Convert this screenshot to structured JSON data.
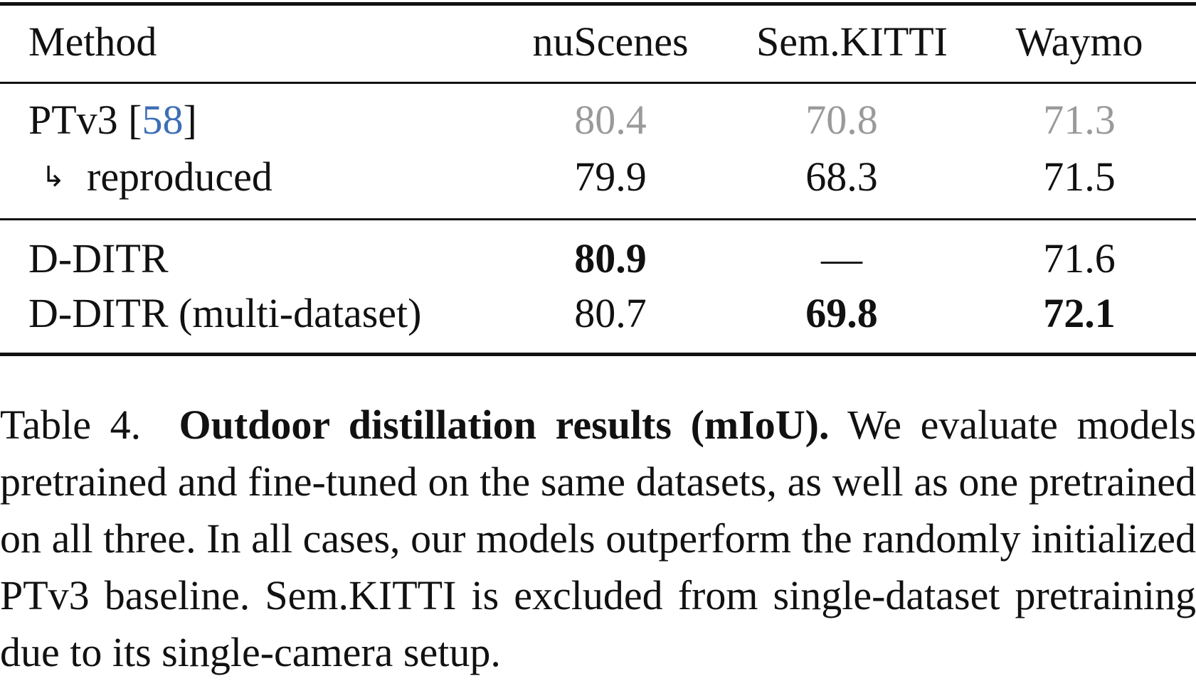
{
  "table": {
    "headers": [
      "Method",
      "nuScenes",
      "Sem.KITTI",
      "Waymo"
    ],
    "rows": [
      {
        "method": "PTv3 [",
        "cite": "58",
        "method_suffix": "]",
        "values": [
          "80.4",
          "70.8",
          "71.3"
        ]
      },
      {
        "arrow": "↳",
        "method": "reproduced",
        "values": [
          "79.9",
          "68.3",
          "71.5"
        ]
      },
      {
        "method": "D-DITR",
        "values": [
          "80.9",
          "—",
          "71.6"
        ]
      },
      {
        "method": "D-DITR (multi-dataset)",
        "values": [
          "80.7",
          "69.8",
          "72.1"
        ]
      }
    ]
  },
  "caption": {
    "label": "Table 4.",
    "title": "Outdoor distillation results (mIoU).",
    "text": "We evaluate models pretrained and fine-tuned on the same datasets, as well as one pretrained on all three.  In all cases, our models outperform the randomly initialized PTv3 baseline. Sem.KITTI is excluded from single-dataset pretraining due to its single-camera setup."
  }
}
